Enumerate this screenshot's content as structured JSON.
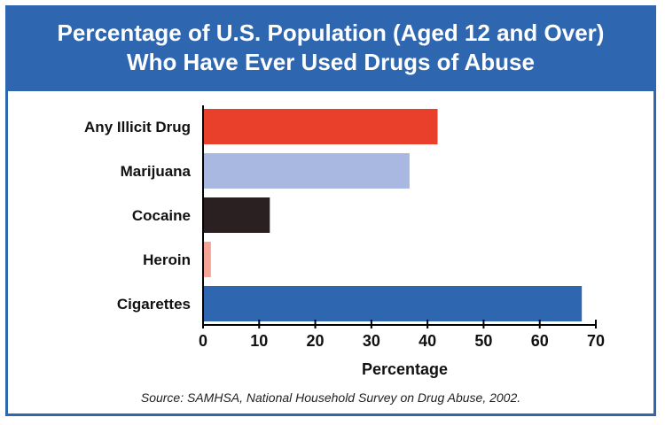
{
  "chart_data": {
    "type": "bar",
    "orientation": "horizontal",
    "title": "Percentage of U.S. Population (Aged 12 and Over)",
    "subtitle": "Who Have Ever Used Drugs of Abuse",
    "categories": [
      "Any Illicit Drug",
      "Marijuana",
      "Cocaine",
      "Heroin",
      "Cigarettes"
    ],
    "values": [
      41.8,
      36.8,
      11.9,
      1.4,
      67.5
    ],
    "bar_colors": [
      "#e8402a",
      "#a9b8e0",
      "#2a2022",
      "#f4a396",
      "#2e66b0"
    ],
    "xlabel": "Percentage",
    "ylabel": "",
    "xlim": [
      0,
      70
    ],
    "xticks": [
      0,
      10,
      20,
      30,
      40,
      50,
      60,
      70
    ],
    "grid": false,
    "source": "Source: SAMHSA, National Household Survey on Drug Abuse, 2002."
  },
  "colors": {
    "header_bg": "#2e66b0",
    "header_text": "#ffffff",
    "axis": "#000000"
  }
}
